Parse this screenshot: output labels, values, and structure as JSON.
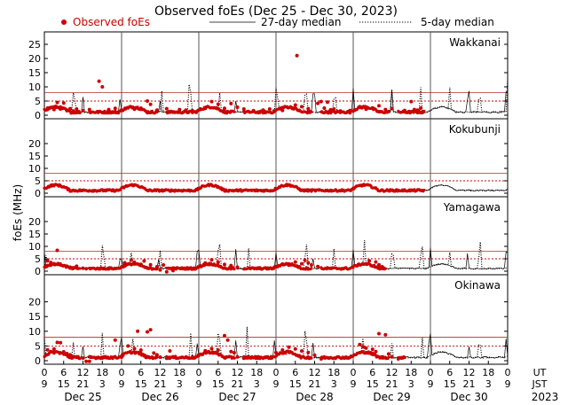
{
  "chart_data": {
    "type": "scatter",
    "title": "Observed foEs (Dec 25 - Dec 30, 2023)",
    "legend": {
      "placement": "top",
      "items": [
        {
          "label": "Observed foEs",
          "style": "red-dots",
          "color": "#cc0000"
        },
        {
          "label": "27-day median",
          "style": "solid-line",
          "color": "#000000"
        },
        {
          "label": "5-day median",
          "style": "dotted-line",
          "color": "#000000"
        }
      ]
    },
    "ylabel": "foEs (MHz)",
    "ylim": [
      0,
      25
    ],
    "xlim": [
      0,
      144
    ],
    "yticks": [
      0,
      5,
      10,
      15,
      20,
      25
    ],
    "top_panel_yticks": [
      "0",
      "5",
      "10",
      "15",
      "20",
      "25"
    ],
    "other_panel_yticks": [
      "0",
      "5",
      "10",
      "15",
      "20"
    ],
    "ut_tick_labels": [
      "0",
      "6",
      "12",
      "18",
      "0",
      "6",
      "12",
      "18",
      "0",
      "6",
      "12",
      "18",
      "0",
      "6",
      "12",
      "18",
      "0",
      "6",
      "12",
      "18",
      "0",
      "6",
      "12",
      "18",
      "0"
    ],
    "jst_tick_labels": [
      "9",
      "15",
      "21",
      "3",
      "9",
      "15",
      "21",
      "3",
      "9",
      "15",
      "21",
      "3",
      "9",
      "15",
      "21",
      "3",
      "9",
      "15",
      "21",
      "3",
      "9",
      "15",
      "21",
      "3",
      "9"
    ],
    "ut_label": "UT",
    "jst_label": "JST",
    "day_labels": [
      "Dec 25",
      "Dec 26",
      "Dec 27",
      "Dec 28",
      "Dec 29",
      "Dec 30"
    ],
    "year_label": "2023",
    "threshold_lines_mhz": [
      5,
      8
    ],
    "panels": [
      {
        "station": "Wakkanai",
        "observed_hours_end": 118,
        "observed": [
          [
            1,
            2.5
          ],
          [
            3,
            2.0
          ],
          [
            4,
            4.5
          ],
          [
            5,
            2.2
          ],
          [
            6,
            4.3
          ],
          [
            7,
            1.6
          ],
          [
            8,
            2.3
          ],
          [
            9,
            1.5
          ],
          [
            10,
            2.2
          ],
          [
            12,
            1.6
          ],
          [
            14,
            2.0
          ],
          [
            17,
            12.0
          ],
          [
            18,
            10.0
          ],
          [
            20,
            2.0
          ],
          [
            22,
            2.4
          ],
          [
            26,
            2.6
          ],
          [
            28,
            2.1
          ],
          [
            30,
            2.5
          ],
          [
            32,
            5.0
          ],
          [
            33,
            3.8
          ],
          [
            35,
            1.8
          ],
          [
            38,
            2.3
          ],
          [
            42,
            2.0
          ],
          [
            44,
            1.8
          ],
          [
            46,
            1.6
          ],
          [
            50,
            2.4
          ],
          [
            52,
            4.8
          ],
          [
            54,
            3.9
          ],
          [
            56,
            2.4
          ],
          [
            58,
            4.1
          ],
          [
            60,
            2.8
          ],
          [
            62,
            2.2
          ],
          [
            65,
            1.6
          ],
          [
            68,
            1.8
          ],
          [
            70,
            2.2
          ],
          [
            74,
            1.7
          ],
          [
            78,
            3.6
          ],
          [
            80,
            3.0
          ],
          [
            82,
            2.3
          ],
          [
            85,
            4.2
          ],
          [
            86,
            4.8
          ],
          [
            87,
            2.5
          ],
          [
            88,
            4.6
          ],
          [
            89,
            1.9
          ],
          [
            90,
            2.2
          ],
          [
            92,
            1.5
          ],
          [
            95,
            1.7
          ],
          [
            98,
            3.0
          ],
          [
            100,
            2.1
          ],
          [
            102,
            2.6
          ],
          [
            104,
            3.3
          ],
          [
            106,
            2.0
          ],
          [
            108,
            2.3
          ],
          [
            112,
            1.7
          ],
          [
            114,
            4.8
          ],
          [
            115,
            2.0
          ],
          [
            116,
            1.8
          ],
          [
            117,
            2.5
          ],
          [
            78.5,
            21.0
          ]
        ]
      },
      {
        "station": "Kokubunji",
        "observed_hours_end": 118,
        "observed": []
      },
      {
        "station": "Yamagawa",
        "observed_hours_end": 106,
        "observed": [
          [
            1,
            4.2
          ],
          [
            2,
            3.5
          ],
          [
            3,
            2.8
          ],
          [
            4,
            8.4
          ],
          [
            5,
            2.6
          ],
          [
            6,
            2.2
          ],
          [
            7,
            2.0
          ],
          [
            8,
            1.6
          ],
          [
            9,
            1.4
          ],
          [
            10,
            2.0
          ],
          [
            12,
            1.2
          ],
          [
            13,
            1.0
          ],
          [
            25,
            3.4
          ],
          [
            27,
            4.5
          ],
          [
            28,
            3.6
          ],
          [
            30,
            2.8
          ],
          [
            31,
            4.1
          ],
          [
            33,
            2.6
          ],
          [
            35,
            1.8
          ],
          [
            36,
            0.5
          ],
          [
            37,
            2.5
          ],
          [
            38,
            -0.3
          ],
          [
            40,
            0.2
          ],
          [
            50,
            3.3
          ],
          [
            52,
            4.6
          ],
          [
            54,
            3.7
          ],
          [
            56,
            2.7
          ],
          [
            58,
            2.3
          ],
          [
            60,
            1.6
          ],
          [
            74,
            2.9
          ],
          [
            76,
            2.4
          ],
          [
            78,
            3.7
          ],
          [
            80,
            3.0
          ],
          [
            81,
            4.4
          ],
          [
            82,
            3.4
          ],
          [
            83,
            2.5
          ],
          [
            85,
            1.9
          ],
          [
            99,
            3.0
          ],
          [
            101,
            4.2
          ],
          [
            103,
            3.7
          ],
          [
            104,
            2.6
          ],
          [
            105,
            1.8
          ]
        ]
      },
      {
        "station": "Okinawa",
        "observed_hours_end": 112,
        "observed": [
          [
            1,
            3.7
          ],
          [
            2,
            3.1
          ],
          [
            3,
            4.0
          ],
          [
            4,
            6.2
          ],
          [
            5,
            6.1
          ],
          [
            6,
            3.0
          ],
          [
            7,
            2.4
          ],
          [
            8,
            2.0
          ],
          [
            9,
            1.4
          ],
          [
            10,
            1.1
          ],
          [
            12,
            0.9
          ],
          [
            13,
            -0.2
          ],
          [
            14,
            -0.2
          ],
          [
            22,
            7.0
          ],
          [
            24,
            1.2
          ],
          [
            26,
            5.0
          ],
          [
            28,
            4.1
          ],
          [
            29,
            10.0
          ],
          [
            30,
            3.6
          ],
          [
            32,
            9.8
          ],
          [
            33,
            10.5
          ],
          [
            34,
            2.6
          ],
          [
            35,
            2.0
          ],
          [
            36,
            1.2
          ],
          [
            38,
            0.8
          ],
          [
            39,
            3.3
          ],
          [
            50,
            3.4
          ],
          [
            52,
            4.1
          ],
          [
            54,
            3.6
          ],
          [
            56,
            8.5
          ],
          [
            57,
            7.0
          ],
          [
            58,
            3.1
          ],
          [
            59,
            2.7
          ],
          [
            60,
            1.3
          ],
          [
            62,
            0.8
          ],
          [
            72,
            2.7
          ],
          [
            74,
            3.6
          ],
          [
            76,
            4.6
          ],
          [
            78,
            4.0
          ],
          [
            80,
            3.3
          ],
          [
            82,
            2.8
          ],
          [
            84,
            1.9
          ],
          [
            86,
            0.6
          ],
          [
            98,
            5.5
          ],
          [
            99,
            4.8
          ],
          [
            100,
            4.3
          ],
          [
            102,
            3.9
          ],
          [
            103,
            3.1
          ],
          [
            104,
            9.2
          ],
          [
            106,
            8.8
          ],
          [
            107,
            2.3
          ],
          [
            108,
            1.3
          ],
          [
            110,
            0.6
          ]
        ]
      }
    ]
  }
}
